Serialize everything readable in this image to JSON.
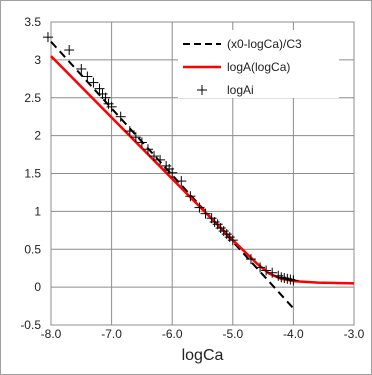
{
  "chart_data": {
    "type": "line",
    "xlabel": "logCa",
    "ylabel": "",
    "xlim": [
      -8.0,
      -3.0
    ],
    "ylim": [
      -0.5,
      3.5
    ],
    "x_tick_values": [
      -8.0,
      -7.0,
      -6.0,
      -5.0,
      -4.0,
      -3.0
    ],
    "x_tick_labels": [
      "-8.0",
      "-7.0",
      "-6.0",
      "-5.0",
      "-4.0",
      "-3.0"
    ],
    "y_tick_values": [
      -0.5,
      0,
      0.5,
      1,
      1.5,
      2,
      2.5,
      3,
      3.5
    ],
    "y_tick_labels": [
      "-0.5",
      "0",
      "0.5",
      "1",
      "1.5",
      "2",
      "2.5",
      "3",
      "3.5"
    ],
    "grid": true,
    "legend_position": "top-right",
    "series": [
      {
        "name": "(x0-logCa)/C3",
        "style": "dashed",
        "color": "#000000",
        "x": [
          -8.0,
          -4.0
        ],
        "y": [
          3.24,
          -0.28
        ]
      },
      {
        "name": "logA(logCa)",
        "style": "solid",
        "color": "#ff0000",
        "x": [
          -8.0,
          -5.0,
          -4.6,
          -4.4,
          -4.2,
          -4.0,
          -3.6,
          -3.0
        ],
        "y": [
          3.05,
          0.62,
          0.31,
          0.18,
          0.11,
          0.08,
          0.06,
          0.05
        ]
      },
      {
        "name": "logAi",
        "style": "markers",
        "marker": "plus",
        "color": "#000000",
        "x": [
          -8.05,
          -7.7,
          -7.5,
          -7.4,
          -7.3,
          -7.2,
          -7.15,
          -7.1,
          -7.05,
          -7.0,
          -6.85,
          -6.7,
          -6.6,
          -6.5,
          -6.4,
          -6.3,
          -6.2,
          -6.1,
          -6.05,
          -6.0,
          -5.85,
          -5.7,
          -5.55,
          -5.45,
          -5.35,
          -5.3,
          -5.25,
          -5.2,
          -5.15,
          -5.1,
          -5.05,
          -5.0,
          -4.7,
          -4.55,
          -4.45,
          -4.35,
          -4.25,
          -4.2,
          -4.15,
          -4.1,
          -4.05,
          -4.0
        ],
        "y": [
          3.3,
          3.13,
          2.88,
          2.78,
          2.7,
          2.62,
          2.55,
          2.5,
          2.42,
          2.38,
          2.25,
          2.06,
          1.98,
          1.91,
          1.82,
          1.73,
          1.68,
          1.6,
          1.56,
          1.51,
          1.4,
          1.2,
          1.05,
          0.97,
          0.91,
          0.86,
          0.83,
          0.78,
          0.74,
          0.7,
          0.66,
          0.62,
          0.37,
          0.26,
          0.22,
          0.19,
          0.15,
          0.13,
          0.12,
          0.11,
          0.1,
          0.09
        ]
      }
    ]
  }
}
